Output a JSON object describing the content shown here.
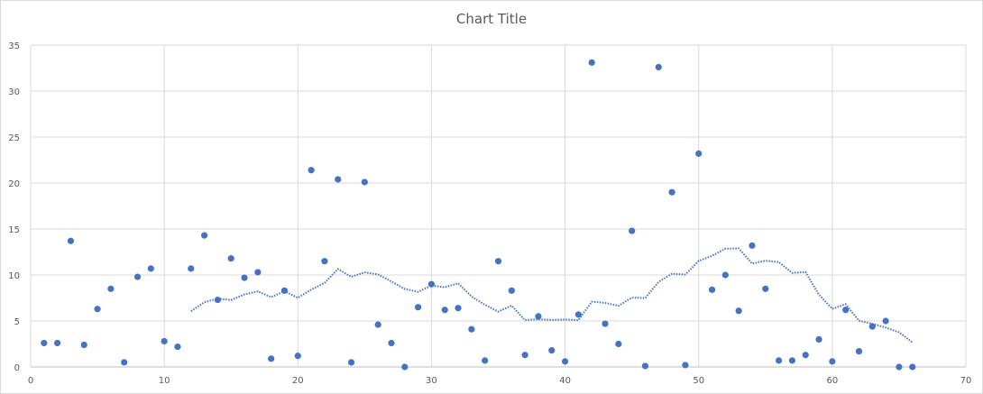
{
  "chart_data": {
    "type": "scatter",
    "title": "Chart Title",
    "xlabel": "",
    "ylabel": "",
    "xlim": [
      0,
      70
    ],
    "ylim": [
      0,
      35
    ],
    "x_ticks": [
      0,
      10,
      20,
      30,
      40,
      50,
      60,
      70
    ],
    "y_ticks": [
      0,
      5,
      10,
      15,
      20,
      25,
      30,
      35
    ],
    "grid": true,
    "legend": "none",
    "marker_color": "#4472C4",
    "trendline": {
      "type": "moving_average",
      "period": 12,
      "style": "dotted",
      "color": "#4472C4"
    },
    "series": [
      {
        "x": [
          1,
          2,
          3,
          4,
          5,
          6,
          7,
          8,
          9,
          10,
          11,
          12,
          13,
          14,
          15,
          16,
          17,
          18,
          19,
          20,
          21,
          22,
          23,
          24,
          25,
          26,
          27,
          28,
          29,
          30,
          31,
          32,
          33,
          34,
          35,
          36,
          37,
          38,
          39,
          40,
          41,
          42,
          43,
          44,
          45,
          46,
          47,
          48,
          49,
          50,
          51,
          52,
          53,
          54,
          55,
          56,
          57,
          58,
          59,
          60,
          61,
          62,
          63,
          64,
          65,
          66
        ],
        "y": [
          2.6,
          2.6,
          13.7,
          2.4,
          6.3,
          8.5,
          0.5,
          9.8,
          10.7,
          2.8,
          2.2,
          10.7,
          14.3,
          7.3,
          11.8,
          9.7,
          10.3,
          0.9,
          8.3,
          1.2,
          21.4,
          11.5,
          20.4,
          0.5,
          20.1,
          4.6,
          2.6,
          0,
          6.5,
          9.0,
          6.2,
          6.4,
          4.1,
          0.7,
          11.5,
          8.3,
          1.3,
          5.5,
          1.8,
          0.6,
          5.7,
          33.1,
          4.7,
          2.5,
          14.8,
          0.1,
          32.6,
          19.0,
          0.2,
          23.2,
          8.4,
          10.0,
          6.1,
          13.2,
          8.5,
          0.7,
          0.7,
          1.3,
          3.0,
          0.6,
          6.2,
          1.7,
          4.4,
          5.0,
          0,
          0
        ]
      }
    ]
  }
}
